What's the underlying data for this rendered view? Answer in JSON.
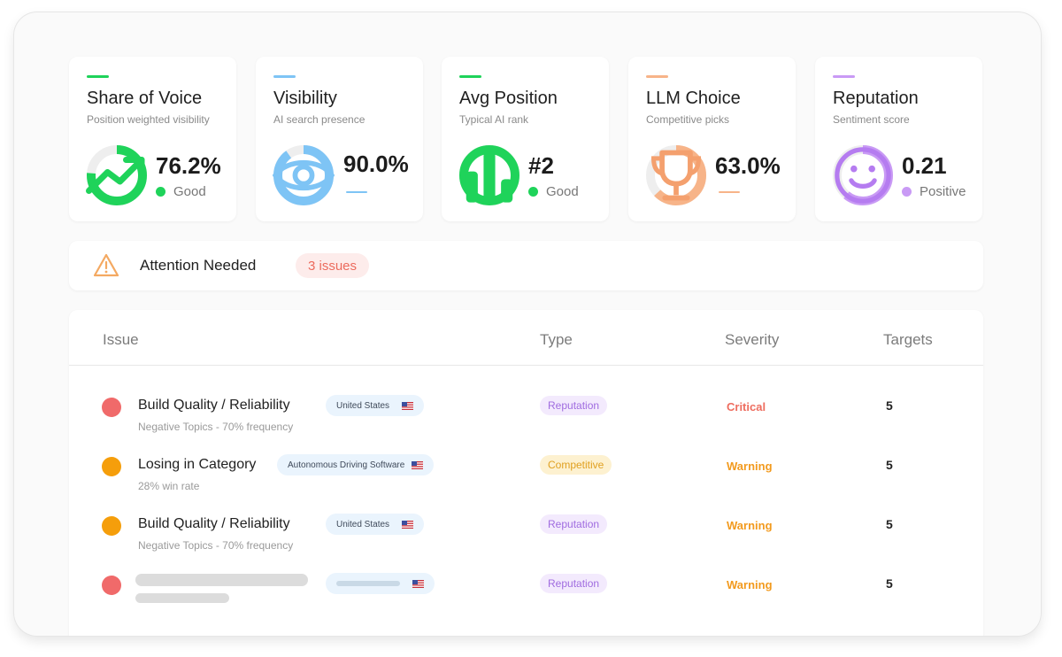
{
  "metrics": [
    {
      "title": "Share of Voice",
      "subtitle": "Position weighted visibility",
      "value": "76.2%",
      "status": "Good",
      "fraction": 0.762,
      "color": "#1fd35a",
      "icon": "trend-up-icon"
    },
    {
      "title": "Visibility",
      "subtitle": "AI search presence",
      "value": "90.0%",
      "status": "",
      "fraction": 0.9,
      "color": "#7ec4f5",
      "icon": "eye-icon"
    },
    {
      "title": "Avg Position",
      "subtitle": "Typical AI rank",
      "value": "#2",
      "status": "Good",
      "fraction": 1.0,
      "color": "#1fd35a",
      "icon": "bar-chart-icon"
    },
    {
      "title": "LLM Choice",
      "subtitle": "Competitive picks",
      "value": "63.0%",
      "status": "",
      "fraction": 0.63,
      "color": "#f7b489",
      "icon": "trophy-icon"
    },
    {
      "title": "Reputation",
      "subtitle": "Sentiment score",
      "value": "0.21",
      "status": "Positive",
      "fraction": 0.61,
      "color": "#c99af5",
      "icon": "smiley-icon"
    }
  ],
  "attention": {
    "label": "Attention Needed",
    "count": "3 issues",
    "icon": "warning-triangle-icon"
  },
  "table": {
    "headers": {
      "issue": "Issue",
      "type": "Type",
      "severity": "Severity",
      "targets": "Targets"
    },
    "rows": [
      {
        "title": "Build Quality / Reliability",
        "subtitle": "Negative Topics - 70% frequency",
        "location": "United States",
        "type": "Reputation",
        "severity": "Critical",
        "targets": "5"
      },
      {
        "title": "Losing in Category",
        "subtitle": "28% win rate",
        "location": "Autonomous Driving Software",
        "type": "Competitive",
        "severity": "Warning",
        "targets": "5"
      },
      {
        "title": "Build Quality / Reliability",
        "subtitle": "Negative Topics - 70% frequency",
        "location": "United States",
        "type": "Reputation",
        "severity": "Warning",
        "targets": "5"
      },
      {
        "title": "",
        "subtitle": "",
        "location": "",
        "type": "Reputation",
        "severity": "Warning",
        "targets": "5"
      }
    ]
  },
  "colors": {
    "green": "#1fd35a",
    "blue": "#7ec4f5",
    "orange": "#f7b489",
    "purple": "#c99af5",
    "critical": "#ee6d5f",
    "warning": "#f29a1e",
    "critical_dot": "#f06a6a",
    "warning_dot": "#f59e0b",
    "reputation_bg": "#f3eafd",
    "reputation_fg": "#a06ce0",
    "competitive_bg": "#fdf1d0",
    "competitive_fg": "#e0a020"
  }
}
